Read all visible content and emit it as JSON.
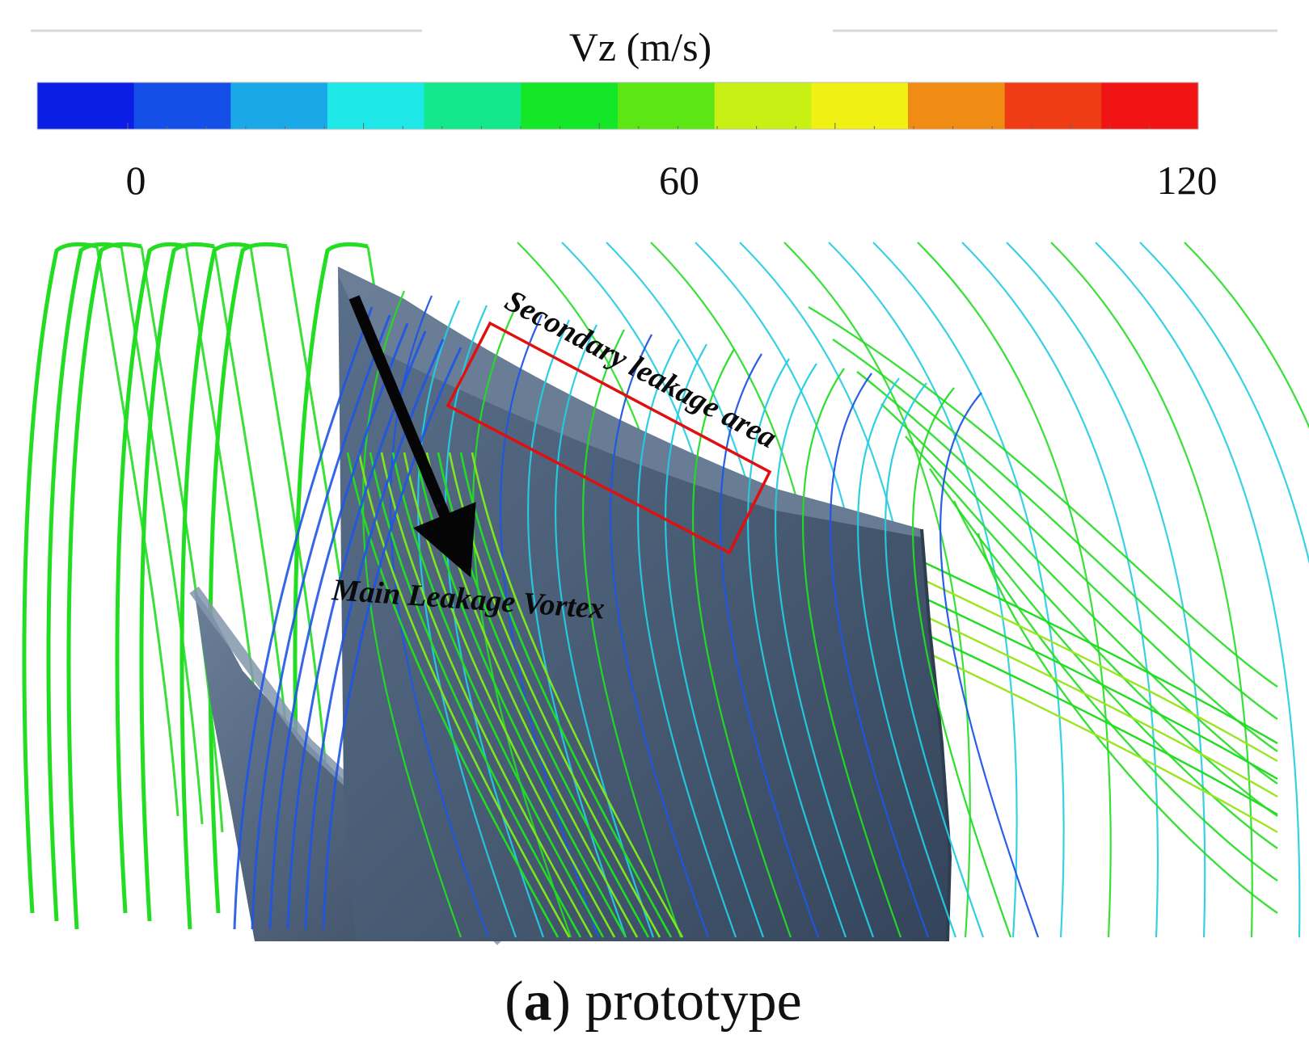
{
  "colorbar": {
    "title": "Vz (m/s)",
    "tick_labels": [
      "0",
      "60",
      "120"
    ],
    "stops": [
      "#0a1ee6",
      "#1450e8",
      "#1aa8e8",
      "#1ee8e8",
      "#14e88c",
      "#14e628",
      "#5ce614",
      "#c8f014",
      "#f0f014",
      "#f08c14",
      "#f03c14",
      "#f01414"
    ]
  },
  "annotations": {
    "main": "Main Leakage Vortex",
    "secondary": "Secondary leakage area"
  },
  "caption": {
    "letter": "a",
    "open": "(",
    "close": ") prototype"
  },
  "colors": {
    "blade": "#4a5e78",
    "blade_dark": "#34445a",
    "blade_tip": "#6a7d96",
    "stream_green": "#22dd22",
    "stream_cyan": "#22cce0",
    "stream_blue": "#1e55e6",
    "box": "#e01010"
  }
}
